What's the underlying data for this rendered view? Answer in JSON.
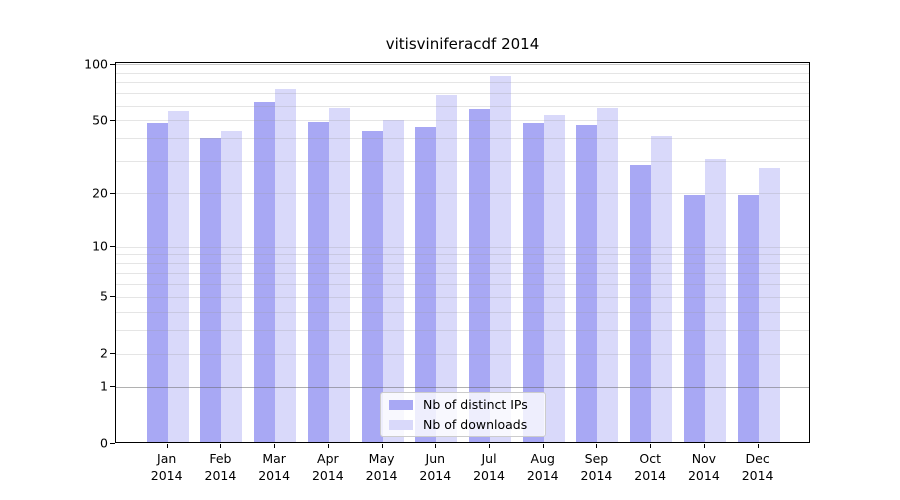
{
  "title": "vitisviniferacdf 2014",
  "legend": {
    "items": [
      {
        "label": "Nb of distinct IPs",
        "color": "#a8a8f4"
      },
      {
        "label": "Nb of downloads",
        "color": "#d9d9fa"
      }
    ]
  },
  "colors": {
    "bar_distinct_ips": "#a8a8f4",
    "bar_downloads": "#d9d9fa",
    "axis": "#000000",
    "grid_minor": "#e4e4e4",
    "grid_unit": "#b0b0b0",
    "legend_border": "#cccccc"
  },
  "chart_data": {
    "type": "bar",
    "title": "vitisviniferacdf 2014",
    "categories": [
      "Jan 2014",
      "Feb 2014",
      "Mar 2014",
      "Apr 2014",
      "May 2014",
      "Jun 2014",
      "Jul 2014",
      "Aug 2014",
      "Sep 2014",
      "Oct 2014",
      "Nov 2014",
      "Dec 2014"
    ],
    "month_labels": [
      "Jan",
      "Feb",
      "Mar",
      "Apr",
      "May",
      "Jun",
      "Jul",
      "Aug",
      "Sep",
      "Oct",
      "Nov",
      "Dec"
    ],
    "year_label": "2014",
    "series": [
      {
        "name": "Nb of distinct IPs",
        "color": "#a8a8f4",
        "values": [
          47,
          39,
          61,
          48,
          43,
          45,
          56,
          47,
          46,
          28,
          19,
          19
        ]
      },
      {
        "name": "Nb of downloads",
        "color": "#d9d9fa",
        "values": [
          55,
          43,
          72,
          57,
          49,
          67,
          84,
          52,
          57,
          40,
          30,
          27
        ]
      }
    ],
    "xlabel": "",
    "ylabel": "",
    "y_scale": "log1p",
    "ylim": [
      0,
      100
    ],
    "y_ticks": [
      0,
      1,
      2,
      5,
      10,
      20,
      50,
      100
    ],
    "y_minor_gridlines": [
      3,
      4,
      6,
      7,
      8,
      9,
      30,
      40,
      60,
      70,
      80,
      90
    ],
    "grid": true,
    "legend_position": "inside-bottom-center"
  }
}
